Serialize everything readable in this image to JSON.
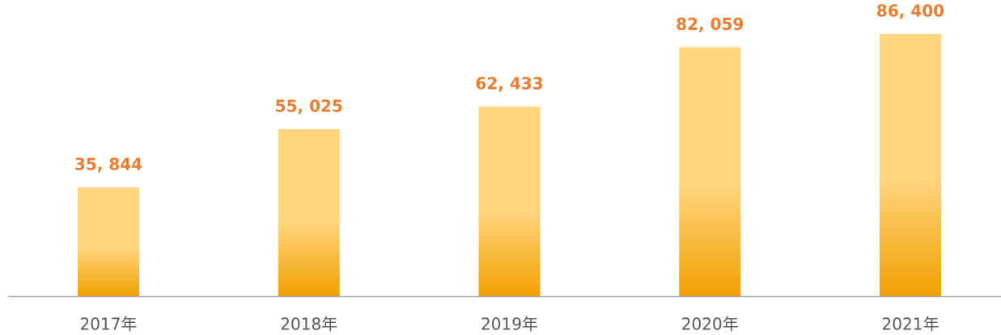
{
  "chart_data": {
    "type": "bar",
    "categories": [
      "2017年",
      "2018年",
      "2019年",
      "2020年",
      "2021年"
    ],
    "values": [
      35844,
      55025,
      62433,
      82059,
      86400
    ],
    "value_labels": [
      "35, 844",
      "55, 025",
      "62, 433",
      "82, 059",
      "86, 400"
    ],
    "gradient": [
      "#ffd57f",
      "#f0a000"
    ],
    "label_color": "#ea7d2f",
    "axis_color": "#a6a6a6"
  }
}
